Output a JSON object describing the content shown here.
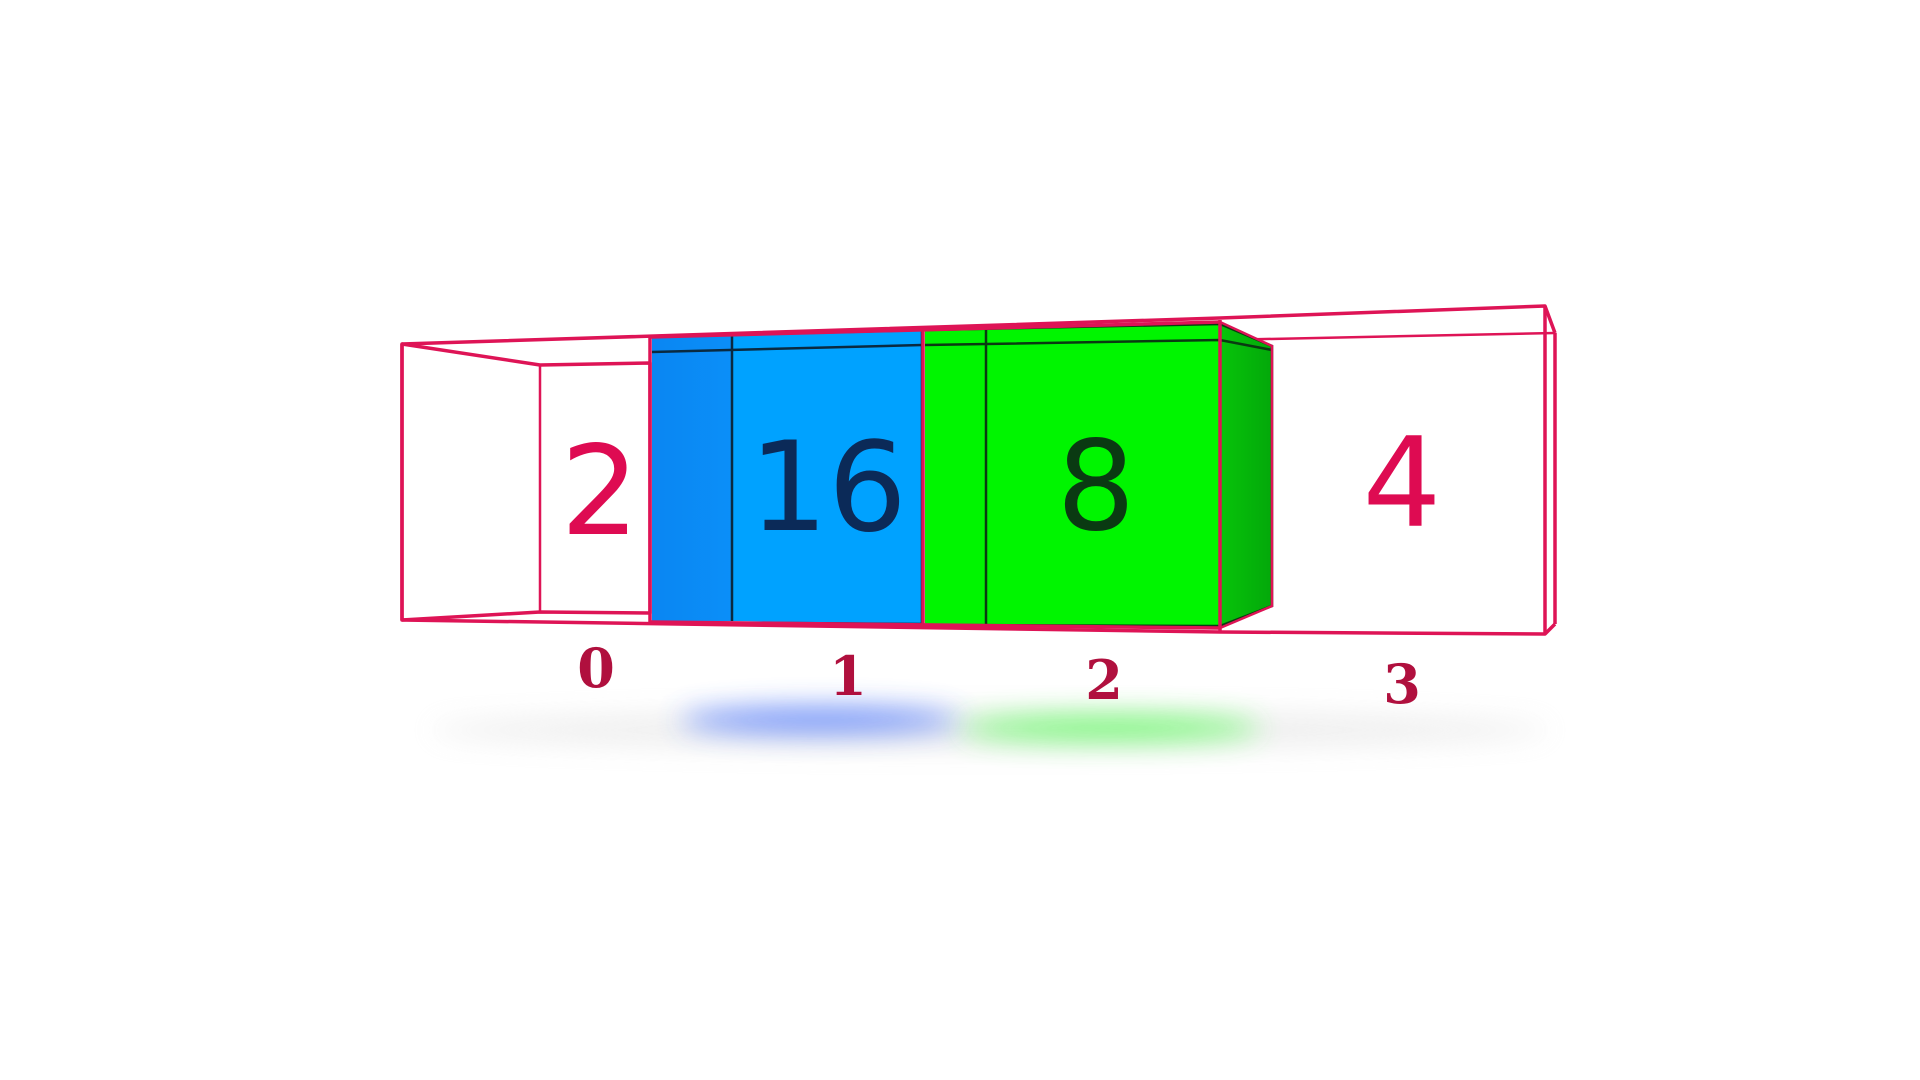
{
  "diagram": {
    "array_cells": [
      {
        "index_label": "0",
        "value_label": "2",
        "fill_color": null,
        "text_color": "#de0b52"
      },
      {
        "index_label": "1",
        "value_label": "16",
        "fill_color": "#00a2ff",
        "text_color": "#0b2a58"
      },
      {
        "index_label": "2",
        "value_label": "8",
        "fill_color": "#00f500",
        "text_color": "#0a3a12"
      },
      {
        "index_label": "3",
        "value_label": "4",
        "fill_color": null,
        "text_color": "#de0b52"
      }
    ],
    "colors": {
      "frame": "#de1456",
      "index_label": "#b0103e",
      "shadow_blue": "#3d6cff",
      "shadow_green": "#3cff3c"
    }
  }
}
